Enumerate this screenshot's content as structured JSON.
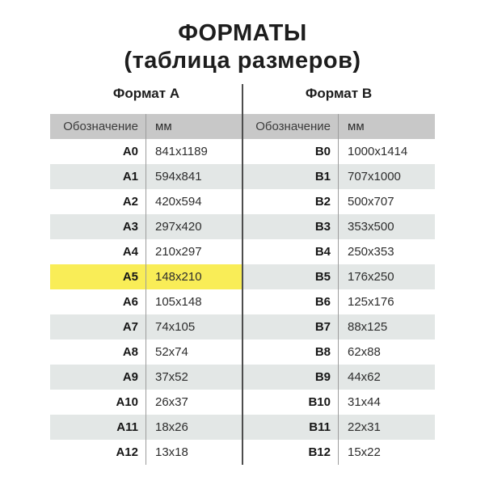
{
  "title": {
    "line1": "ФОРМАТЫ",
    "line2": "(таблица размеров)"
  },
  "sections": [
    {
      "label": "Формат А",
      "headers": {
        "designation": "Обозначение",
        "size": "мм"
      },
      "rows": [
        {
          "designation": "A0",
          "size": "841x1189",
          "highlight": false
        },
        {
          "designation": "A1",
          "size": "594x841",
          "highlight": false
        },
        {
          "designation": "A2",
          "size": "420x594",
          "highlight": false
        },
        {
          "designation": "A3",
          "size": "297x420",
          "highlight": false
        },
        {
          "designation": "A4",
          "size": "210x297",
          "highlight": false
        },
        {
          "designation": "A5",
          "size": "148x210",
          "highlight": true
        },
        {
          "designation": "A6",
          "size": "105x148",
          "highlight": false
        },
        {
          "designation": "A7",
          "size": "74x105",
          "highlight": false
        },
        {
          "designation": "A8",
          "size": "52x74",
          "highlight": false
        },
        {
          "designation": "A9",
          "size": "37x52",
          "highlight": false
        },
        {
          "designation": "A10",
          "size": "26x37",
          "highlight": false
        },
        {
          "designation": "A11",
          "size": "18x26",
          "highlight": false
        },
        {
          "designation": "A12",
          "size": "13x18",
          "highlight": false
        }
      ]
    },
    {
      "label": "Формат B",
      "headers": {
        "designation": "Обозначение",
        "size": "мм"
      },
      "rows": [
        {
          "designation": "B0",
          "size": "1000x1414",
          "highlight": false
        },
        {
          "designation": "B1",
          "size": "707x1000",
          "highlight": false
        },
        {
          "designation": "B2",
          "size": "500x707",
          "highlight": false
        },
        {
          "designation": "B3",
          "size": "353x500",
          "highlight": false
        },
        {
          "designation": "B4",
          "size": "250x353",
          "highlight": false
        },
        {
          "designation": "B5",
          "size": "176x250",
          "highlight": false
        },
        {
          "designation": "B6",
          "size": "125x176",
          "highlight": false
        },
        {
          "designation": "B7",
          "size": "88x125",
          "highlight": false
        },
        {
          "designation": "B8",
          "size": "62x88",
          "highlight": false
        },
        {
          "designation": "B9",
          "size": "44x62",
          "highlight": false
        },
        {
          "designation": "B10",
          "size": "31x44",
          "highlight": false
        },
        {
          "designation": "B11",
          "size": "22x31",
          "highlight": false
        },
        {
          "designation": "B12",
          "size": "15x22",
          "highlight": false
        }
      ]
    }
  ],
  "colors": {
    "header_bg": "#c8c8c8",
    "row_alt_bg": "#e3e7e6",
    "highlight_bg": "#f9ed57",
    "column_line": "#9c9c9c",
    "center_line": "#4d4d4d"
  }
}
